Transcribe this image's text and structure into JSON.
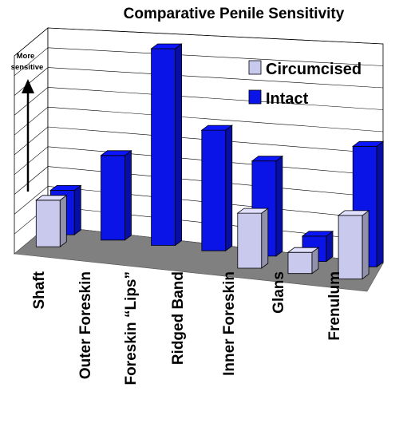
{
  "chart_data": {
    "type": "bar",
    "title": "Comparative Penile Sensitivity",
    "categories": [
      "Shaft",
      "Outer Foreskin",
      "Foreskin “Lips”",
      "Ridged Band",
      "Inner Foreskin",
      "Glans",
      "Frenulum"
    ],
    "series": [
      {
        "name": "Circumcised",
        "color": "#c9c9ee",
        "values": [
          2.2,
          null,
          null,
          null,
          2.6,
          1.0,
          3.0
        ]
      },
      {
        "name": "Intact",
        "color": "#0a14e6",
        "values": [
          2.1,
          4.0,
          9.3,
          5.7,
          4.5,
          1.2,
          5.7
        ]
      }
    ],
    "ylim": [
      0,
      10
    ],
    "grid": true,
    "legend_position": "top-right",
    "ylabel": "",
    "xlabel": "",
    "annotation": {
      "line1": "More",
      "line2": "sensitive",
      "arrow": "up"
    },
    "floor_color": "#808080",
    "wall_color": "#ffffff"
  }
}
